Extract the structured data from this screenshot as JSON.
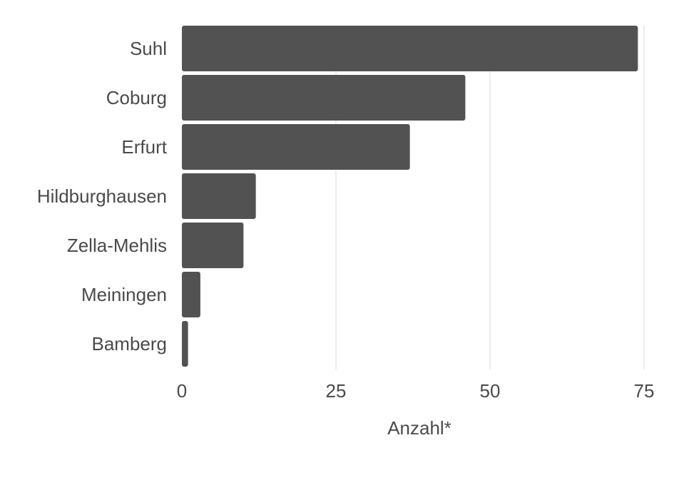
{
  "chart_data": {
    "type": "bar",
    "orientation": "horizontal",
    "categories": [
      "Suhl",
      "Coburg",
      "Erfurt",
      "Hildburghausen",
      "Zella-Mehlis",
      "Meiningen",
      "Bamberg"
    ],
    "values": [
      74,
      46,
      37,
      12,
      10,
      3,
      1
    ],
    "title": "",
    "xlabel": "Anzahl*",
    "ylabel": "",
    "xlim": [
      0,
      75
    ],
    "xticks": [
      0,
      25,
      50,
      75
    ],
    "grid": "vertical",
    "bar_color": "#525252"
  }
}
